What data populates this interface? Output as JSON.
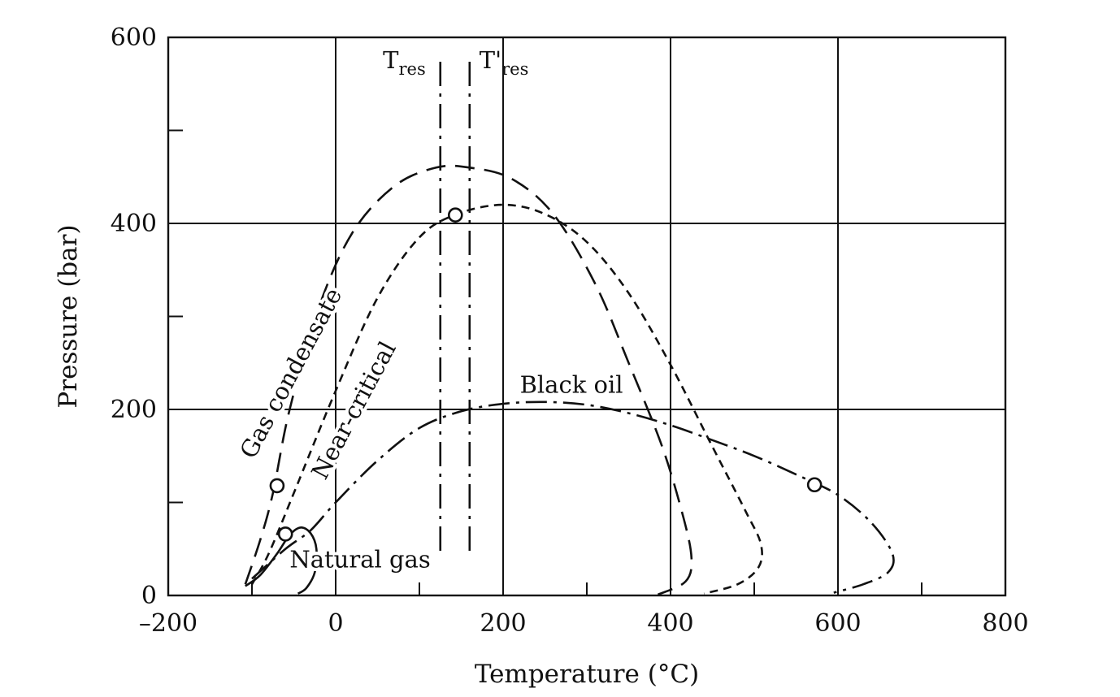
{
  "chart_data": {
    "type": "line",
    "title": "",
    "xlabel": "Temperature (°C)",
    "ylabel": "Pressure (bar)",
    "xlim": [
      -200,
      800
    ],
    "ylim": [
      0,
      600
    ],
    "x_ticks": [
      -200,
      0,
      200,
      400,
      600,
      800
    ],
    "x_tick_labels": [
      "–200",
      "0",
      "200",
      "400",
      "600",
      "800"
    ],
    "x_minor_ticks": [
      -100,
      100,
      300,
      500,
      700
    ],
    "y_ticks": [
      0,
      200,
      400,
      600
    ],
    "y_tick_labels": [
      "0",
      "200",
      "400",
      "600"
    ],
    "y_minor_ticks": [
      100,
      300,
      500
    ],
    "grid": true,
    "legend": "none",
    "series": [
      {
        "name": "Natural gas",
        "style": "solid",
        "points": [
          [
            -108,
            10
          ],
          [
            -90,
            22
          ],
          [
            -70,
            45
          ],
          [
            -55,
            65
          ],
          [
            -42,
            73
          ],
          [
            -30,
            67
          ],
          [
            -23,
            50
          ],
          [
            -25,
            25
          ],
          [
            -35,
            8
          ],
          [
            -45,
            2
          ]
        ],
        "critical_point": [
          -60,
          66
        ]
      },
      {
        "name": "Gas condensate",
        "style": "long-dash",
        "points": [
          [
            -108,
            12
          ],
          [
            -90,
            60
          ],
          [
            -75,
            110
          ],
          [
            -55,
            200
          ],
          [
            -20,
            310
          ],
          [
            20,
            390
          ],
          [
            70,
            440
          ],
          [
            120,
            460
          ],
          [
            160,
            460
          ],
          [
            210,
            448
          ],
          [
            260,
            410
          ],
          [
            310,
            335
          ],
          [
            350,
            250
          ],
          [
            390,
            160
          ],
          [
            415,
            85
          ],
          [
            425,
            40
          ],
          [
            418,
            15
          ],
          [
            385,
            1
          ]
        ],
        "critical_point": [
          -70,
          118
        ]
      },
      {
        "name": "Near-critical",
        "style": "short-dash",
        "points": [
          [
            -100,
            12
          ],
          [
            -80,
            45
          ],
          [
            -50,
            110
          ],
          [
            0,
            220
          ],
          [
            50,
            320
          ],
          [
            100,
            385
          ],
          [
            145,
            410
          ],
          [
            200,
            420
          ],
          [
            250,
            410
          ],
          [
            300,
            380
          ],
          [
            350,
            325
          ],
          [
            400,
            248
          ],
          [
            450,
            160
          ],
          [
            490,
            90
          ],
          [
            508,
            55
          ],
          [
            505,
            30
          ],
          [
            480,
            12
          ],
          [
            440,
            2
          ]
        ],
        "critical_point": [
          143,
          409
        ]
      },
      {
        "name": "Black oil",
        "style": "dash-dot",
        "points": [
          [
            -100,
            18
          ],
          [
            -60,
            50
          ],
          [
            -30,
            70
          ],
          [
            0,
            100
          ],
          [
            50,
            145
          ],
          [
            100,
            180
          ],
          [
            150,
            198
          ],
          [
            200,
            206
          ],
          [
            250,
            208
          ],
          [
            300,
            205
          ],
          [
            350,
            196
          ],
          [
            400,
            183
          ],
          [
            450,
            167
          ],
          [
            500,
            150
          ],
          [
            550,
            130
          ],
          [
            600,
            108
          ],
          [
            640,
            78
          ],
          [
            665,
            45
          ],
          [
            660,
            25
          ],
          [
            630,
            12
          ],
          [
            595,
            3
          ]
        ],
        "critical_point": [
          572,
          119
        ]
      },
      {
        "name": "Tres",
        "style": "dash-dot-vertical",
        "points": [
          [
            125,
            48
          ],
          [
            125,
            578
          ]
        ]
      },
      {
        "name": "T'res",
        "style": "dash-dot-vertical",
        "points": [
          [
            160,
            48
          ],
          [
            160,
            578
          ]
        ]
      }
    ],
    "labels": [
      {
        "text": "Gas condensate",
        "anchor": [
          -45,
          235
        ],
        "rotation": -62
      },
      {
        "text": "Near-critical",
        "anchor": [
          30,
          195
        ],
        "rotation": -62
      },
      {
        "text": "Black oil",
        "anchor": [
          220,
          218
        ],
        "rotation": 0
      },
      {
        "text": "Natural gas",
        "anchor": [
          -55,
          30
        ],
        "rotation": 0
      }
    ],
    "vertical_labels": {
      "tres_main": "T",
      "tres_sub": "res",
      "tres_prime_main": "T'",
      "tres_prime_sub": "res"
    }
  }
}
